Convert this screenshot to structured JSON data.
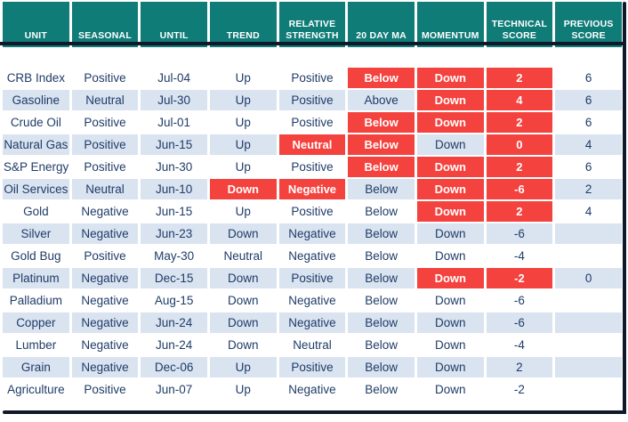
{
  "table": {
    "name": "commodity-technical-scoreboard",
    "columns": [
      {
        "key": "unit",
        "label": "UNIT"
      },
      {
        "key": "seasonal",
        "label": "SEASONAL"
      },
      {
        "key": "until",
        "label": "UNTIL"
      },
      {
        "key": "trend",
        "label": "TREND"
      },
      {
        "key": "relative-strength",
        "label": "RELATIVE STRENGTH"
      },
      {
        "key": "20-day-ma",
        "label": "20 DAY MA"
      },
      {
        "key": "momentum",
        "label": "MOMENTUM"
      },
      {
        "key": "technical-score",
        "label": "TECHNICAL SCORE"
      },
      {
        "key": "previous-score",
        "label": "PREVIOUS SCORE"
      }
    ],
    "rows": [
      {
        "cells": [
          {
            "text": "CRB Index"
          },
          {
            "text": "Positive"
          },
          {
            "text": "Jul-04"
          },
          {
            "text": "Up"
          },
          {
            "text": "Positive"
          },
          {
            "text": "Below",
            "alert": true
          },
          {
            "text": "Down",
            "alert": true
          },
          {
            "text": "2",
            "alert": true
          },
          {
            "text": "6"
          }
        ]
      },
      {
        "cells": [
          {
            "text": "Gasoline"
          },
          {
            "text": "Neutral"
          },
          {
            "text": "Jul-30"
          },
          {
            "text": "Up"
          },
          {
            "text": "Positive"
          },
          {
            "text": "Above"
          },
          {
            "text": "Down",
            "alert": true
          },
          {
            "text": "4",
            "alert": true
          },
          {
            "text": "6"
          }
        ]
      },
      {
        "cells": [
          {
            "text": "Crude Oil"
          },
          {
            "text": "Positive"
          },
          {
            "text": "Jul-01"
          },
          {
            "text": "Up"
          },
          {
            "text": "Positive"
          },
          {
            "text": "Below",
            "alert": true
          },
          {
            "text": "Down",
            "alert": true
          },
          {
            "text": "2",
            "alert": true
          },
          {
            "text": "6"
          }
        ]
      },
      {
        "cells": [
          {
            "text": "Natural Gas"
          },
          {
            "text": "Positive"
          },
          {
            "text": "Jun-15"
          },
          {
            "text": "Up"
          },
          {
            "text": "Neutral",
            "alert": true
          },
          {
            "text": "Below",
            "alert": true
          },
          {
            "text": "Down"
          },
          {
            "text": "0",
            "alert": true
          },
          {
            "text": "4"
          }
        ]
      },
      {
        "cells": [
          {
            "text": "S&P Energy"
          },
          {
            "text": "Positive"
          },
          {
            "text": "Jun-30"
          },
          {
            "text": "Up"
          },
          {
            "text": "Positive"
          },
          {
            "text": "Below",
            "alert": true
          },
          {
            "text": "Down",
            "alert": true
          },
          {
            "text": "2",
            "alert": true
          },
          {
            "text": "6"
          }
        ]
      },
      {
        "cells": [
          {
            "text": "Oil Services"
          },
          {
            "text": "Neutral"
          },
          {
            "text": "Jun-10"
          },
          {
            "text": "Down",
            "alert": true
          },
          {
            "text": "Negative",
            "alert": true
          },
          {
            "text": "Below"
          },
          {
            "text": "Down",
            "alert": true
          },
          {
            "text": "-6",
            "alert": true
          },
          {
            "text": "2"
          }
        ]
      },
      {
        "cells": [
          {
            "text": "Gold"
          },
          {
            "text": "Negative"
          },
          {
            "text": "Jun-15"
          },
          {
            "text": "Up"
          },
          {
            "text": "Positive"
          },
          {
            "text": "Below"
          },
          {
            "text": "Down",
            "alert": true
          },
          {
            "text": "2",
            "alert": true
          },
          {
            "text": "4"
          }
        ]
      },
      {
        "cells": [
          {
            "text": "Silver"
          },
          {
            "text": "Negative"
          },
          {
            "text": "Jun-23"
          },
          {
            "text": "Down"
          },
          {
            "text": "Negative"
          },
          {
            "text": "Below"
          },
          {
            "text": "Down"
          },
          {
            "text": "-6"
          },
          {
            "text": ""
          }
        ]
      },
      {
        "cells": [
          {
            "text": "Gold Bug"
          },
          {
            "text": "Positive"
          },
          {
            "text": "May-30"
          },
          {
            "text": "Neutral"
          },
          {
            "text": "Negative"
          },
          {
            "text": "Below"
          },
          {
            "text": "Down"
          },
          {
            "text": "-4"
          },
          {
            "text": ""
          }
        ]
      },
      {
        "cells": [
          {
            "text": "Platinum"
          },
          {
            "text": "Negative"
          },
          {
            "text": "Dec-15"
          },
          {
            "text": "Down"
          },
          {
            "text": "Positive"
          },
          {
            "text": "Below"
          },
          {
            "text": "Down",
            "alert": true
          },
          {
            "text": "-2",
            "alert": true
          },
          {
            "text": "0"
          }
        ]
      },
      {
        "cells": [
          {
            "text": "Palladium"
          },
          {
            "text": "Negative"
          },
          {
            "text": "Aug-15"
          },
          {
            "text": "Down"
          },
          {
            "text": "Negative"
          },
          {
            "text": "Below"
          },
          {
            "text": "Down"
          },
          {
            "text": "-6"
          },
          {
            "text": ""
          }
        ]
      },
      {
        "cells": [
          {
            "text": "Copper"
          },
          {
            "text": "Negative"
          },
          {
            "text": "Jun-24"
          },
          {
            "text": "Down"
          },
          {
            "text": "Negative"
          },
          {
            "text": "Below"
          },
          {
            "text": "Down"
          },
          {
            "text": "-6"
          },
          {
            "text": ""
          }
        ]
      },
      {
        "cells": [
          {
            "text": "Lumber"
          },
          {
            "text": "Negative"
          },
          {
            "text": "Jun-24"
          },
          {
            "text": "Down"
          },
          {
            "text": "Neutral"
          },
          {
            "text": "Below"
          },
          {
            "text": "Down"
          },
          {
            "text": "-4"
          },
          {
            "text": ""
          }
        ]
      },
      {
        "cells": [
          {
            "text": "Grain"
          },
          {
            "text": "Negative"
          },
          {
            "text": "Dec-06"
          },
          {
            "text": "Up"
          },
          {
            "text": "Positive"
          },
          {
            "text": "Below"
          },
          {
            "text": "Down"
          },
          {
            "text": "2"
          },
          {
            "text": ""
          }
        ]
      },
      {
        "cells": [
          {
            "text": "Agriculture"
          },
          {
            "text": "Positive"
          },
          {
            "text": "Jun-07"
          },
          {
            "text": "Up"
          },
          {
            "text": "Negative"
          },
          {
            "text": "Below"
          },
          {
            "text": "Down"
          },
          {
            "text": "-2"
          },
          {
            "text": ""
          }
        ]
      }
    ]
  },
  "colors": {
    "header_bg": "#107c77",
    "header_text": "#ffffff",
    "alert_bg": "#f4423e",
    "alert_text": "#ffffff",
    "row_bg": "#ffffff",
    "row_alt_bg": "#dae3f0",
    "cell_text": "#1f3c68",
    "frame_line": "#10192a"
  }
}
